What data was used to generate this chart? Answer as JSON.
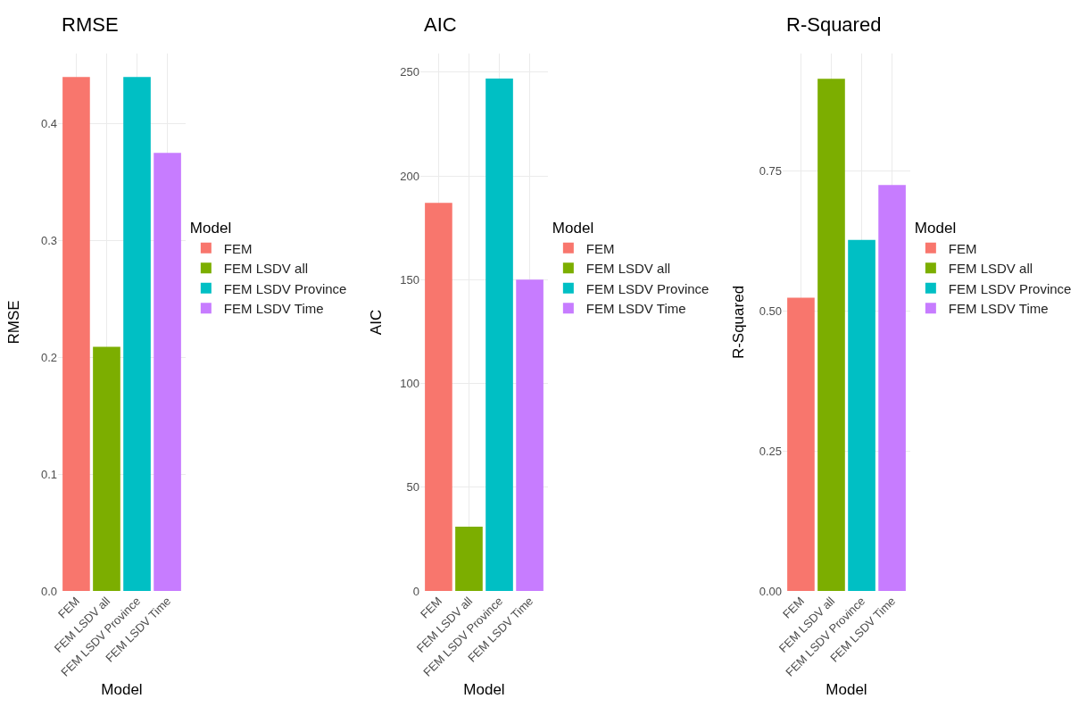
{
  "chart_data": [
    {
      "type": "bar",
      "title": "RMSE",
      "xlabel": "Model",
      "ylabel": "RMSE",
      "legend_title": "Model",
      "categories": [
        "FEM",
        "FEM LSDV all",
        "FEM LSDV Province",
        "FEM LSDV Time"
      ],
      "series": [
        {
          "name": "FEM",
          "color": "#f8766d",
          "values": [
            0.44,
            null,
            null,
            null
          ]
        },
        {
          "name": "FEM LSDV all",
          "color": "#7cae00",
          "values": [
            null,
            0.209,
            null,
            null
          ]
        },
        {
          "name": "FEM LSDV Province",
          "color": "#00bfc4",
          "values": [
            null,
            null,
            0.44,
            null
          ]
        },
        {
          "name": "FEM LSDV Time",
          "color": "#c77cff",
          "values": [
            null,
            null,
            null,
            0.375
          ]
        }
      ],
      "ylim": [
        0,
        0.46
      ],
      "yticks": [
        {
          "value": 0,
          "label": "0.0"
        },
        {
          "value": 0.1,
          "label": "0.1"
        },
        {
          "value": 0.2,
          "label": "0.2"
        },
        {
          "value": 0.3,
          "label": "0.3"
        },
        {
          "value": 0.4,
          "label": "0.4"
        }
      ],
      "grid": true,
      "legend": "right"
    },
    {
      "type": "bar",
      "title": "AIC",
      "xlabel": "Model",
      "ylabel": "AIC",
      "legend_title": "Model",
      "categories": [
        "FEM",
        "FEM LSDV all",
        "FEM LSDV Province",
        "FEM LSDV Time"
      ],
      "series": [
        {
          "name": "FEM",
          "color": "#f8766d",
          "values": [
            187,
            null,
            null,
            null
          ]
        },
        {
          "name": "FEM LSDV all",
          "color": "#7cae00",
          "values": [
            null,
            31,
            null,
            null
          ]
        },
        {
          "name": "FEM LSDV Province",
          "color": "#00bfc4",
          "values": [
            null,
            null,
            247,
            null
          ]
        },
        {
          "name": "FEM LSDV Time",
          "color": "#c77cff",
          "values": [
            null,
            null,
            null,
            150
          ]
        }
      ],
      "ylim": [
        0,
        259
      ],
      "yticks": [
        0,
        50,
        100,
        150,
        200,
        250
      ],
      "grid": true,
      "legend": "right"
    },
    {
      "type": "bar",
      "title": "R-Squared",
      "xlabel": "Model",
      "ylabel": "R-Squared",
      "legend_title": "Model",
      "categories": [
        "FEM",
        "FEM LSDV all",
        "FEM LSDV Province",
        "FEM LSDV Time"
      ],
      "series": [
        {
          "name": "FEM",
          "color": "#f8766d",
          "values": [
            0.524,
            null,
            null,
            null
          ]
        },
        {
          "name": "FEM LSDV all",
          "color": "#7cae00",
          "values": [
            null,
            0.915,
            null,
            null
          ]
        },
        {
          "name": "FEM LSDV Province",
          "color": "#00bfc4",
          "values": [
            null,
            null,
            0.627,
            null
          ]
        },
        {
          "name": "FEM LSDV Time",
          "color": "#c77cff",
          "values": [
            null,
            null,
            null,
            0.725
          ]
        }
      ],
      "ylim": [
        0,
        0.96
      ],
      "yticks": [
        {
          "value": 0,
          "label": "0.00"
        },
        {
          "value": 0.25,
          "label": "0.25"
        },
        {
          "value": 0.5,
          "label": "0.50"
        },
        {
          "value": 0.75,
          "label": "0.75"
        }
      ],
      "grid": true,
      "legend": "right"
    }
  ]
}
